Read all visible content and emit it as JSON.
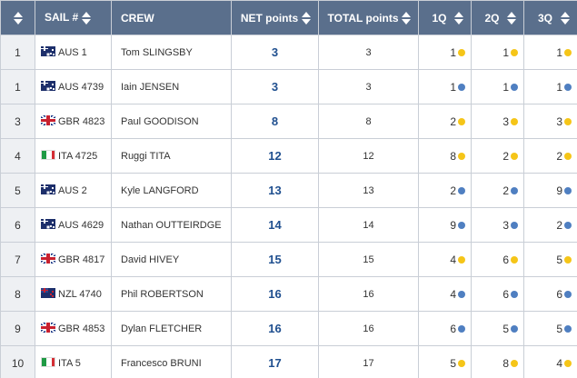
{
  "headers": {
    "rank": "",
    "sail": "SAIL #",
    "crew": "CREW",
    "net": "NET points",
    "total": "TOTAL points",
    "q1": "1Q",
    "q2": "2Q",
    "q3": "3Q"
  },
  "colors": {
    "header_bg": "#5a6f8c",
    "net_text": "#1f4f8f",
    "dot_yellow": "#f5c518",
    "dot_blue": "#4f7fc1"
  },
  "rows": [
    {
      "rank": "1",
      "country": "AUS",
      "sail": "AUS 1",
      "crew": "Tom SLINGSBY",
      "net": "3",
      "total": "3",
      "q": [
        {
          "v": "1",
          "c": "yellow"
        },
        {
          "v": "1",
          "c": "yellow"
        },
        {
          "v": "1",
          "c": "yellow"
        }
      ]
    },
    {
      "rank": "1",
      "country": "AUS",
      "sail": "AUS 4739",
      "crew": "Iain JENSEN",
      "net": "3",
      "total": "3",
      "q": [
        {
          "v": "1",
          "c": "blue"
        },
        {
          "v": "1",
          "c": "blue"
        },
        {
          "v": "1",
          "c": "blue"
        }
      ]
    },
    {
      "rank": "3",
      "country": "GBR",
      "sail": "GBR 4823",
      "crew": "Paul GOODISON",
      "net": "8",
      "total": "8",
      "q": [
        {
          "v": "2",
          "c": "yellow"
        },
        {
          "v": "3",
          "c": "yellow"
        },
        {
          "v": "3",
          "c": "yellow"
        }
      ]
    },
    {
      "rank": "4",
      "country": "ITA",
      "sail": "ITA 4725",
      "crew": "Ruggi TITA",
      "net": "12",
      "total": "12",
      "q": [
        {
          "v": "8",
          "c": "yellow"
        },
        {
          "v": "2",
          "c": "yellow"
        },
        {
          "v": "2",
          "c": "yellow"
        }
      ]
    },
    {
      "rank": "5",
      "country": "AUS",
      "sail": "AUS 2",
      "crew": "Kyle LANGFORD",
      "net": "13",
      "total": "13",
      "q": [
        {
          "v": "2",
          "c": "blue"
        },
        {
          "v": "2",
          "c": "blue"
        },
        {
          "v": "9",
          "c": "blue"
        }
      ]
    },
    {
      "rank": "6",
      "country": "AUS",
      "sail": "AUS 4629",
      "crew": "Nathan OUTTEIRDGE",
      "net": "14",
      "total": "14",
      "q": [
        {
          "v": "9",
          "c": "blue"
        },
        {
          "v": "3",
          "c": "blue"
        },
        {
          "v": "2",
          "c": "blue"
        }
      ]
    },
    {
      "rank": "7",
      "country": "GBR",
      "sail": "GBR 4817",
      "crew": "David HIVEY",
      "net": "15",
      "total": "15",
      "q": [
        {
          "v": "4",
          "c": "yellow"
        },
        {
          "v": "6",
          "c": "yellow"
        },
        {
          "v": "5",
          "c": "yellow"
        }
      ]
    },
    {
      "rank": "8",
      "country": "NZL",
      "sail": "NZL 4740",
      "crew": "Phil ROBERTSON",
      "net": "16",
      "total": "16",
      "q": [
        {
          "v": "4",
          "c": "blue"
        },
        {
          "v": "6",
          "c": "blue"
        },
        {
          "v": "6",
          "c": "blue"
        }
      ]
    },
    {
      "rank": "9",
      "country": "GBR",
      "sail": "GBR 4853",
      "crew": "Dylan FLETCHER",
      "net": "16",
      "total": "16",
      "q": [
        {
          "v": "6",
          "c": "blue"
        },
        {
          "v": "5",
          "c": "blue"
        },
        {
          "v": "5",
          "c": "blue"
        }
      ]
    },
    {
      "rank": "10",
      "country": "ITA",
      "sail": "ITA 5",
      "crew": "Francesco BRUNI",
      "net": "17",
      "total": "17",
      "q": [
        {
          "v": "5",
          "c": "yellow"
        },
        {
          "v": "8",
          "c": "yellow"
        },
        {
          "v": "4",
          "c": "yellow"
        }
      ]
    }
  ]
}
